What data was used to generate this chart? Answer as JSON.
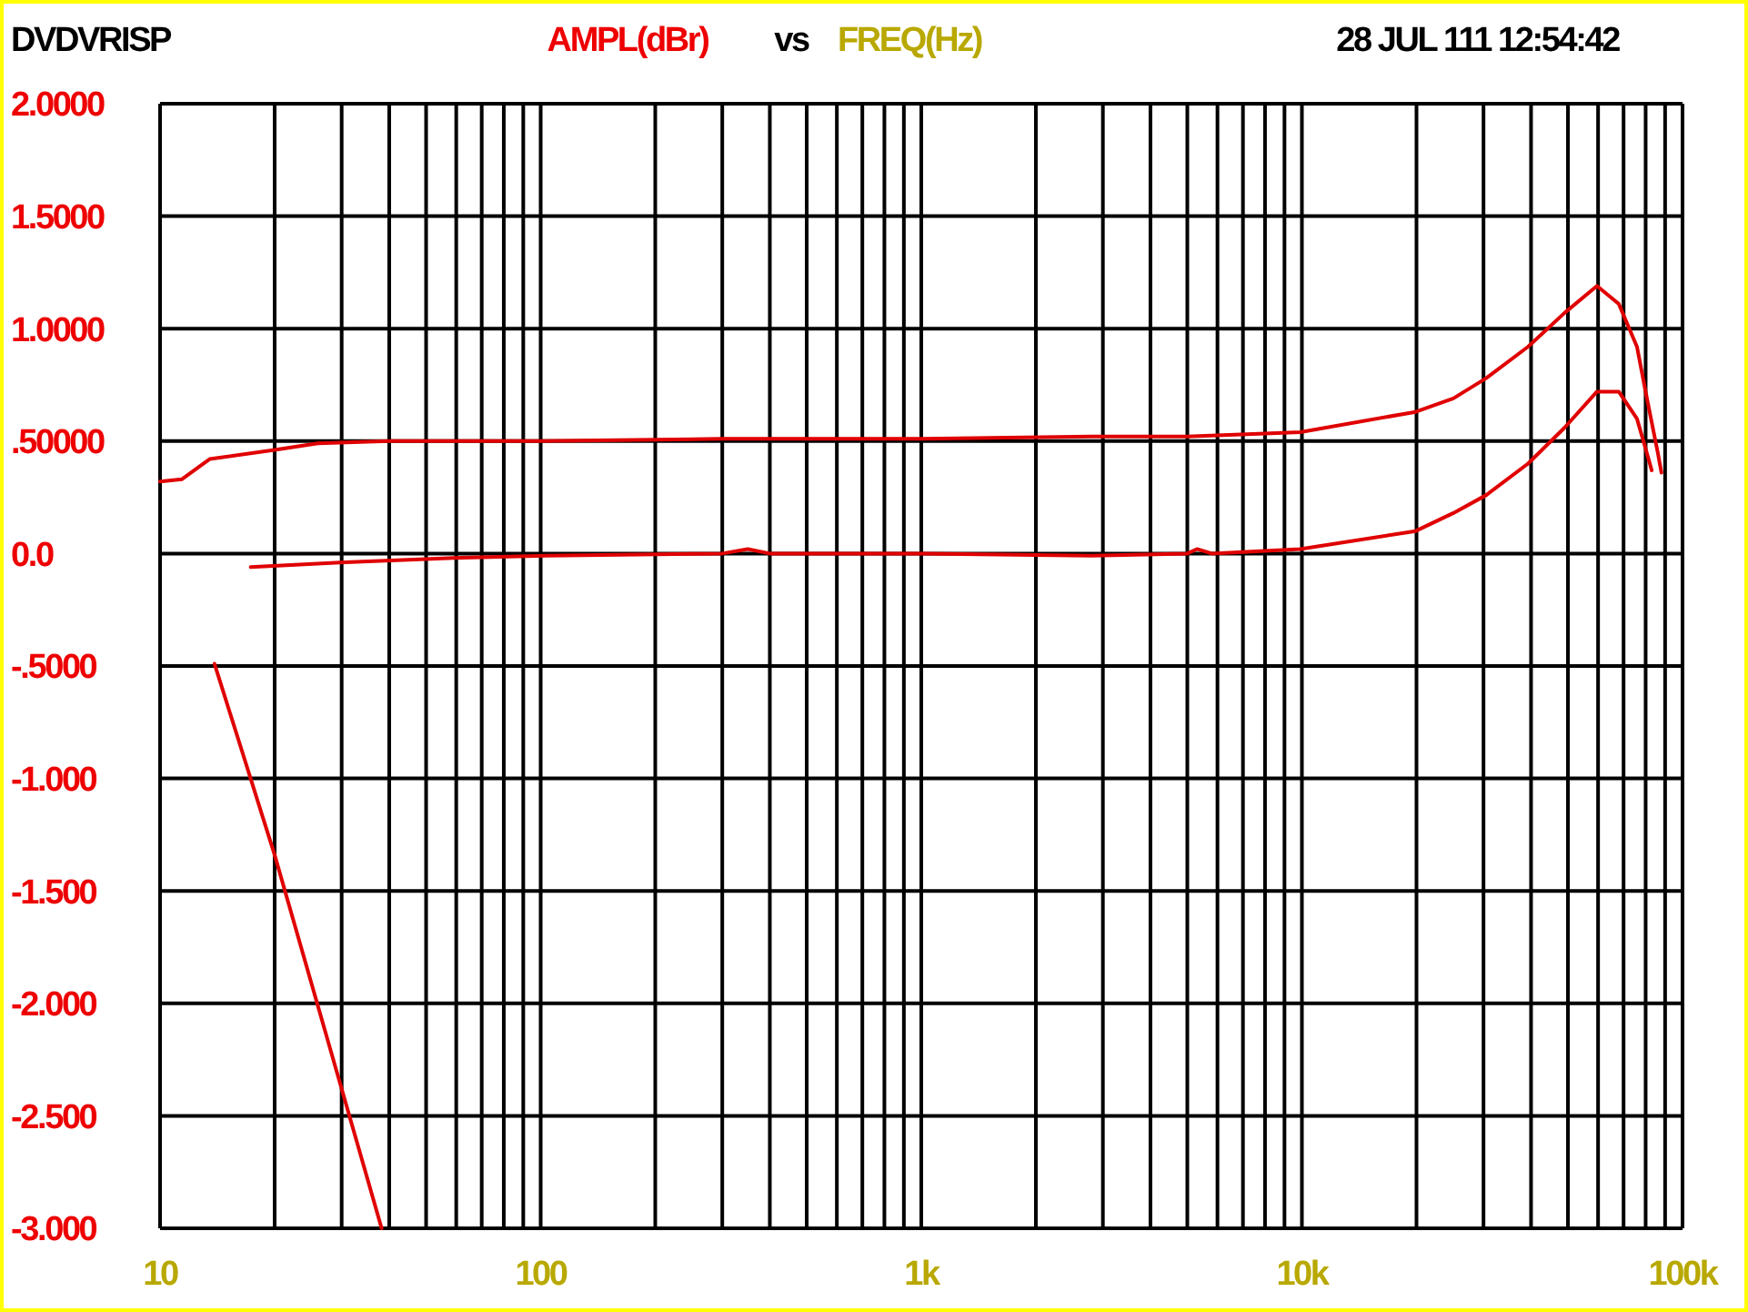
{
  "chart_data": {
    "type": "line",
    "title": "DVDVRISP",
    "xlabel": "FREQ(Hz)",
    "ylabel": "AMPL(dBr)",
    "annotations": [
      "vs",
      "28 JUL 111 12:54:42"
    ],
    "log": "x",
    "grid": true,
    "marker": "none",
    "line_style": "solid",
    "xlim": [
      10,
      100000
    ],
    "xticks": [
      {
        "value": 10,
        "label": "10"
      },
      {
        "value": 20,
        "label": null
      },
      {
        "value": 30,
        "label": null
      },
      {
        "value": 40,
        "label": null
      },
      {
        "value": 50,
        "label": null
      },
      {
        "value": 60,
        "label": null
      },
      {
        "value": 70,
        "label": null
      },
      {
        "value": 80,
        "label": null
      },
      {
        "value": 90,
        "label": null
      },
      {
        "value": 100,
        "label": "100"
      },
      {
        "value": 200,
        "label": null
      },
      {
        "value": 300,
        "label": null
      },
      {
        "value": 400,
        "label": null
      },
      {
        "value": 500,
        "label": null
      },
      {
        "value": 600,
        "label": null
      },
      {
        "value": 700,
        "label": null
      },
      {
        "value": 800,
        "label": null
      },
      {
        "value": 900,
        "label": null
      },
      {
        "value": 1000,
        "label": "1k"
      },
      {
        "value": 2000,
        "label": null
      },
      {
        "value": 3000,
        "label": null
      },
      {
        "value": 4000,
        "label": null
      },
      {
        "value": 5000,
        "label": null
      },
      {
        "value": 6000,
        "label": null
      },
      {
        "value": 7000,
        "label": null
      },
      {
        "value": 8000,
        "label": null
      },
      {
        "value": 9000,
        "label": null
      },
      {
        "value": 10000,
        "label": "10k"
      },
      {
        "value": 20000,
        "label": null
      },
      {
        "value": 30000,
        "label": null
      },
      {
        "value": 40000,
        "label": null
      },
      {
        "value": 50000,
        "label": null
      },
      {
        "value": 60000,
        "label": null
      },
      {
        "value": 70000,
        "label": null
      },
      {
        "value": 80000,
        "label": null
      },
      {
        "value": 90000,
        "label": null
      },
      {
        "value": 100000,
        "label": "100k"
      }
    ],
    "ylim": [
      -3,
      2
    ],
    "yticks": [
      {
        "value": 2,
        "label": "2.0000"
      },
      {
        "value": 1.5,
        "label": "1.5000"
      },
      {
        "value": 1,
        "label": "1.0000"
      },
      {
        "value": 0.5,
        "label": ".50000"
      },
      {
        "value": 0,
        "label": "0.0"
      },
      {
        "value": -0.5,
        "label": "-.5000"
      },
      {
        "value": -1,
        "label": "-1.000"
      },
      {
        "value": -1.5,
        "label": "-1.500"
      },
      {
        "value": -2,
        "label": "-2.000"
      },
      {
        "value": -2.5,
        "label": "-2.500"
      },
      {
        "value": -3,
        "label": "-3.000"
      }
    ],
    "series": [
      {
        "color": "#e00000",
        "x": [
          10,
          11.4,
          13.5,
          19.8,
          26,
          40,
          100,
          300,
          1000,
          2800,
          5000,
          9900,
          19900,
          25000,
          30500,
          39300,
          49000,
          59600,
          68000,
          75900,
          80200,
          86300,
          88000
        ],
        "values": [
          0.32,
          0.33,
          0.42,
          0.46,
          0.49,
          0.5,
          0.5,
          0.51,
          0.51,
          0.52,
          0.52,
          0.54,
          0.63,
          0.69,
          0.78,
          0.92,
          1.07,
          1.19,
          1.11,
          0.92,
          0.71,
          0.44,
          0.36
        ]
      },
      {
        "color": "#e00000",
        "x": [
          17.3,
          29.7,
          59,
          103,
          300,
          350,
          400,
          1000,
          2800,
          5000,
          5300,
          5800,
          9900,
          19900,
          25000,
          30500,
          39300,
          49000,
          59600,
          68000,
          75900,
          80200,
          83000
        ],
        "values": [
          -0.06,
          -0.04,
          -0.02,
          -0.01,
          0,
          0.02,
          0,
          0,
          -0.01,
          0,
          0.02,
          0,
          0.02,
          0.1,
          0.18,
          0.26,
          0.4,
          0.56,
          0.72,
          0.72,
          0.6,
          0.46,
          0.37
        ]
      },
      {
        "color": "#e00000",
        "x": [
          13.9,
          20,
          30,
          38.2
        ],
        "values": [
          -0.49,
          -1.34,
          -2.38,
          -3.0
        ]
      }
    ]
  }
}
